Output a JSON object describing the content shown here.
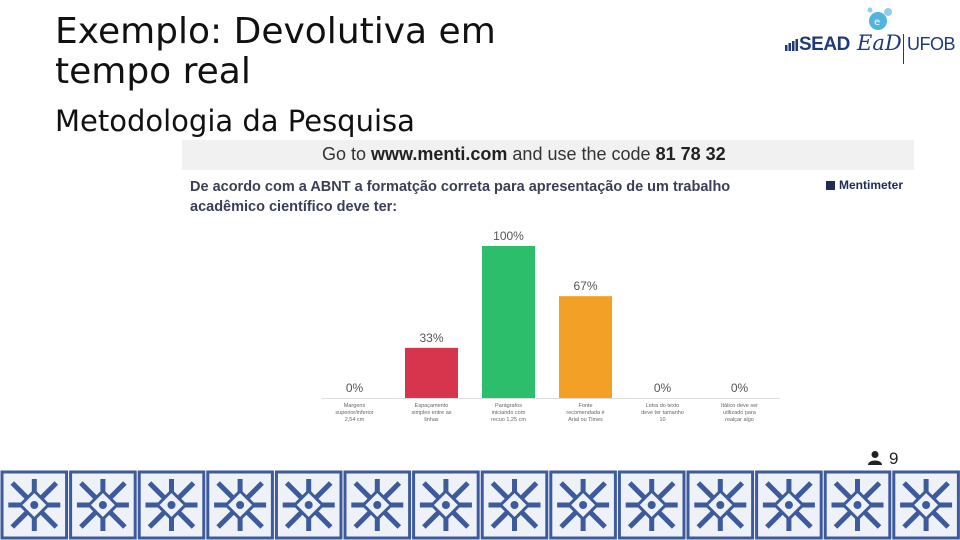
{
  "slide": {
    "title": "Exemplo: Devolutiva em tempo real",
    "subtitle": "Metodologia da Pesquisa"
  },
  "logos": {
    "sead": "SEAD",
    "ead": "EaD",
    "ufob": "UFOB",
    "icons": [
      "bars-icon",
      "bubble-icon"
    ],
    "color": "#1e3a78"
  },
  "menti": {
    "bar_prefix": "Go to",
    "url": "www.menti.com",
    "bar_middle": "and use the code",
    "code": "81 78 32",
    "brand": "Mentimeter",
    "participants": "9"
  },
  "chart_data": {
    "type": "bar",
    "title": "De acordo com a ABNT a formatção correta para apresentação de um trabalho acadêmico científico deve ter:",
    "categories": [
      "Margens superior/inferior 2,54 cm",
      "Espaçamento simples entre as linhas",
      "Parágrafos iniciando com recuo 1,25 cm",
      "Fonte recomendada é Arial ou Times",
      "Letra do texto deve ter tamanho 10",
      "Itálico deve ser utilizado para realçar algo"
    ],
    "values": [
      0,
      33,
      100,
      67,
      0,
      0
    ],
    "value_labels": [
      "0%",
      "33%",
      "100%",
      "67%",
      "0%",
      "0%"
    ],
    "colors": [
      "#cccccc",
      "#d7344e",
      "#2dbe6c",
      "#f2a126",
      "#cccccc",
      "#cccccc"
    ],
    "ylim": [
      0,
      100
    ],
    "unit": "%",
    "grid": false
  }
}
